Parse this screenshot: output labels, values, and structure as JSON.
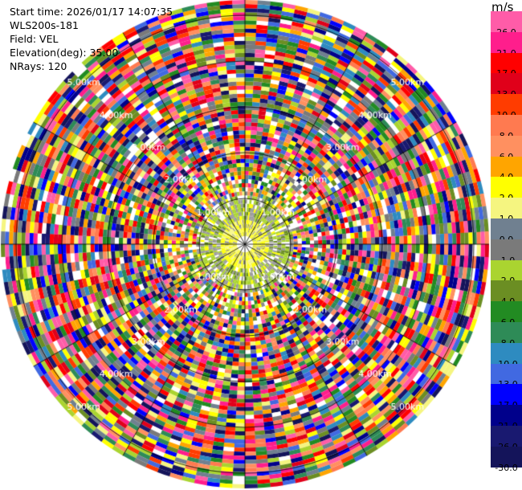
{
  "info": {
    "start_time": "Start time: 2026/01/17 14:07:35",
    "instrument": "WLS200s-181",
    "field": "Field: VEL",
    "elevation": "Elevation(deg): 35.00",
    "nrays": "NRays: 120"
  },
  "colorbar": {
    "unit": "m/s",
    "colors": [
      "#ff5ca8",
      "#ff1e8c",
      "#ff0000",
      "#e0001a",
      "#ff3c00",
      "#ff7a50",
      "#ff9060",
      "#ffa500",
      "#ffff00",
      "#f5f580",
      "#708090",
      "#7a7a7a",
      "#aad430",
      "#6b8e23",
      "#228b22",
      "#2e8b57",
      "#2e8bc0",
      "#4169e1",
      "#0000ff",
      "#00008b",
      "#191970",
      "#14145a"
    ],
    "labels": [
      "26.0",
      "21.0",
      "17.0",
      "13.0",
      "10.0",
      "8.0",
      "6.0",
      "4.0",
      "2.0",
      "1.0",
      "0.0",
      "-1.0",
      "-2.0",
      "-4.0",
      "-6.0",
      "-8.0",
      "-10.0",
      "-13.0",
      "-17.0",
      "-21.0",
      "-26.0",
      "-30.0"
    ]
  },
  "range_rings": [
    "1.00km",
    "2.00km",
    "3.00km",
    "4.00km",
    "5.00km"
  ]
}
